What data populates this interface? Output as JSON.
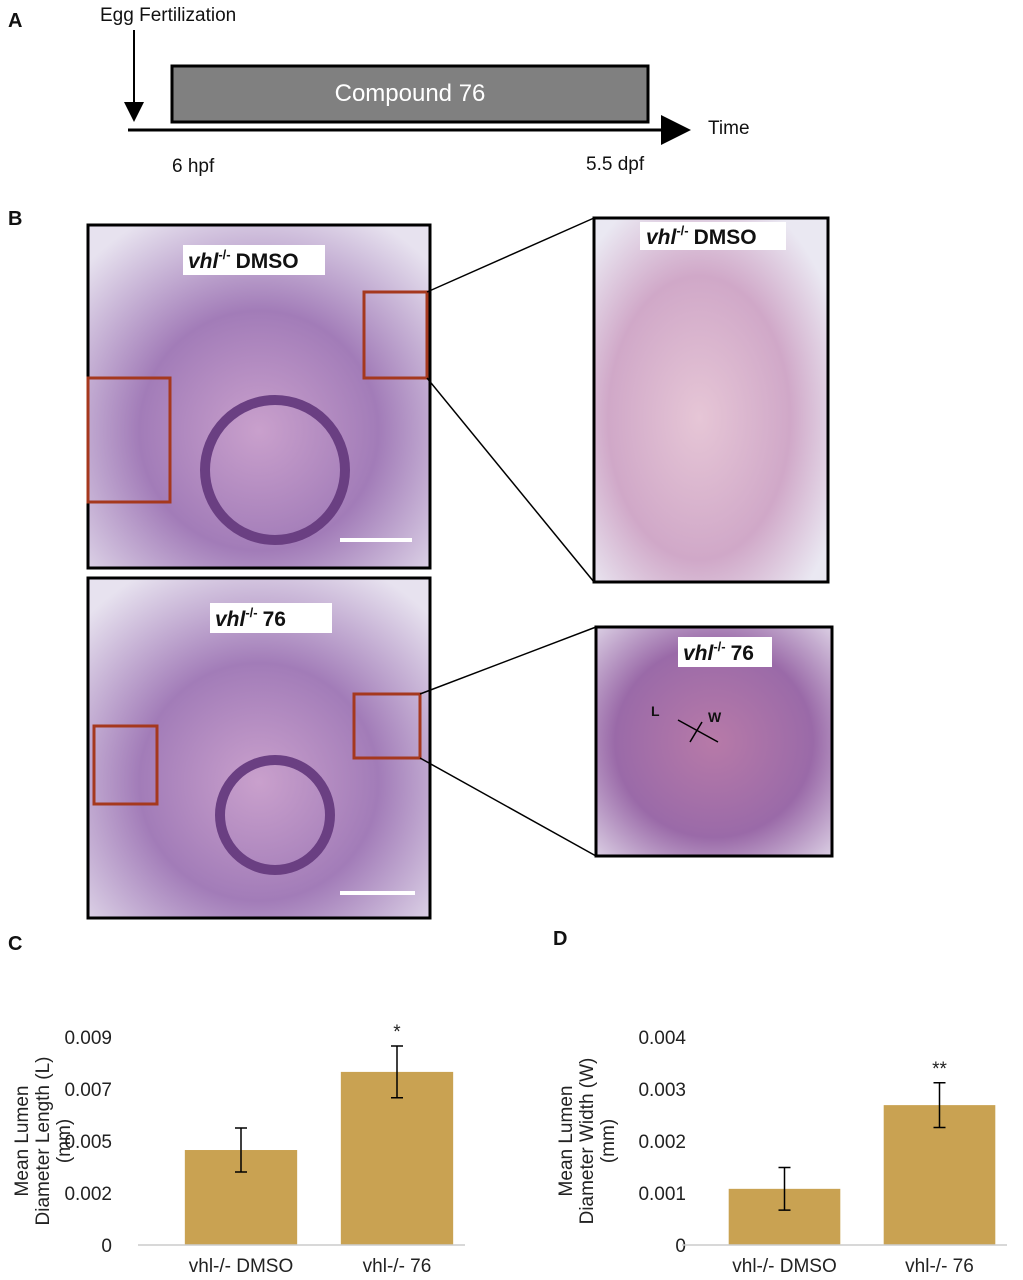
{
  "panel_labels": [
    "A",
    "B",
    "C",
    "D"
  ],
  "timeline": {
    "event": "Egg Fertilization",
    "treatment": "Compound 76",
    "axis_label": "Time",
    "start": "6 hpf",
    "end": "5.5 dpf"
  },
  "histology": {
    "overview": [
      {
        "gene": "vhl",
        "genotype": "-/-",
        "treatment": "DMSO"
      },
      {
        "gene": "vhl",
        "genotype": "-/-",
        "treatment": "76"
      }
    ],
    "zoom": [
      {
        "gene": "vhl",
        "genotype": "-/-",
        "treatment": "DMSO"
      },
      {
        "gene": "vhl",
        "genotype": "-/-",
        "treatment": "76"
      }
    ],
    "measure_labels": [
      "L",
      "W"
    ]
  },
  "chart_data": [
    {
      "type": "bar",
      "y_label": [
        "Mean Lumen",
        "Diameter Length (L)",
        "(mm)"
      ],
      "categories": [
        "vhl-/- DMSO",
        "vhl-/- 76"
      ],
      "values": [
        0.00411,
        0.00749
      ],
      "errors": [
        0.00095,
        0.00112
      ],
      "significance": [
        null,
        "*"
      ],
      "color": "#c9a252",
      "ylim": [
        0,
        0.009
      ],
      "yticks": [
        0,
        {
          "value": 0.00225,
          "label": "0.002"
        },
        {
          "value": 0.0045,
          "label": "0.005"
        },
        {
          "value": 0.00675,
          "label": "0.007"
        },
        0.009
      ],
      "grid": false
    },
    {
      "type": "bar",
      "y_label": [
        "Mean Lumen",
        "Diameter Width (W)",
        "(mm)"
      ],
      "categories": [
        "vhl-/- DMSO",
        "vhl-/- 76"
      ],
      "values": [
        0.00108,
        0.00269
      ],
      "errors": [
        0.00041,
        0.00043
      ],
      "significance": [
        null,
        "**"
      ],
      "color": "#c9a252",
      "ylim": [
        0,
        0.004
      ],
      "yticks": [
        0,
        0.001,
        0.002,
        0.003,
        0.004
      ],
      "grid": false
    }
  ]
}
